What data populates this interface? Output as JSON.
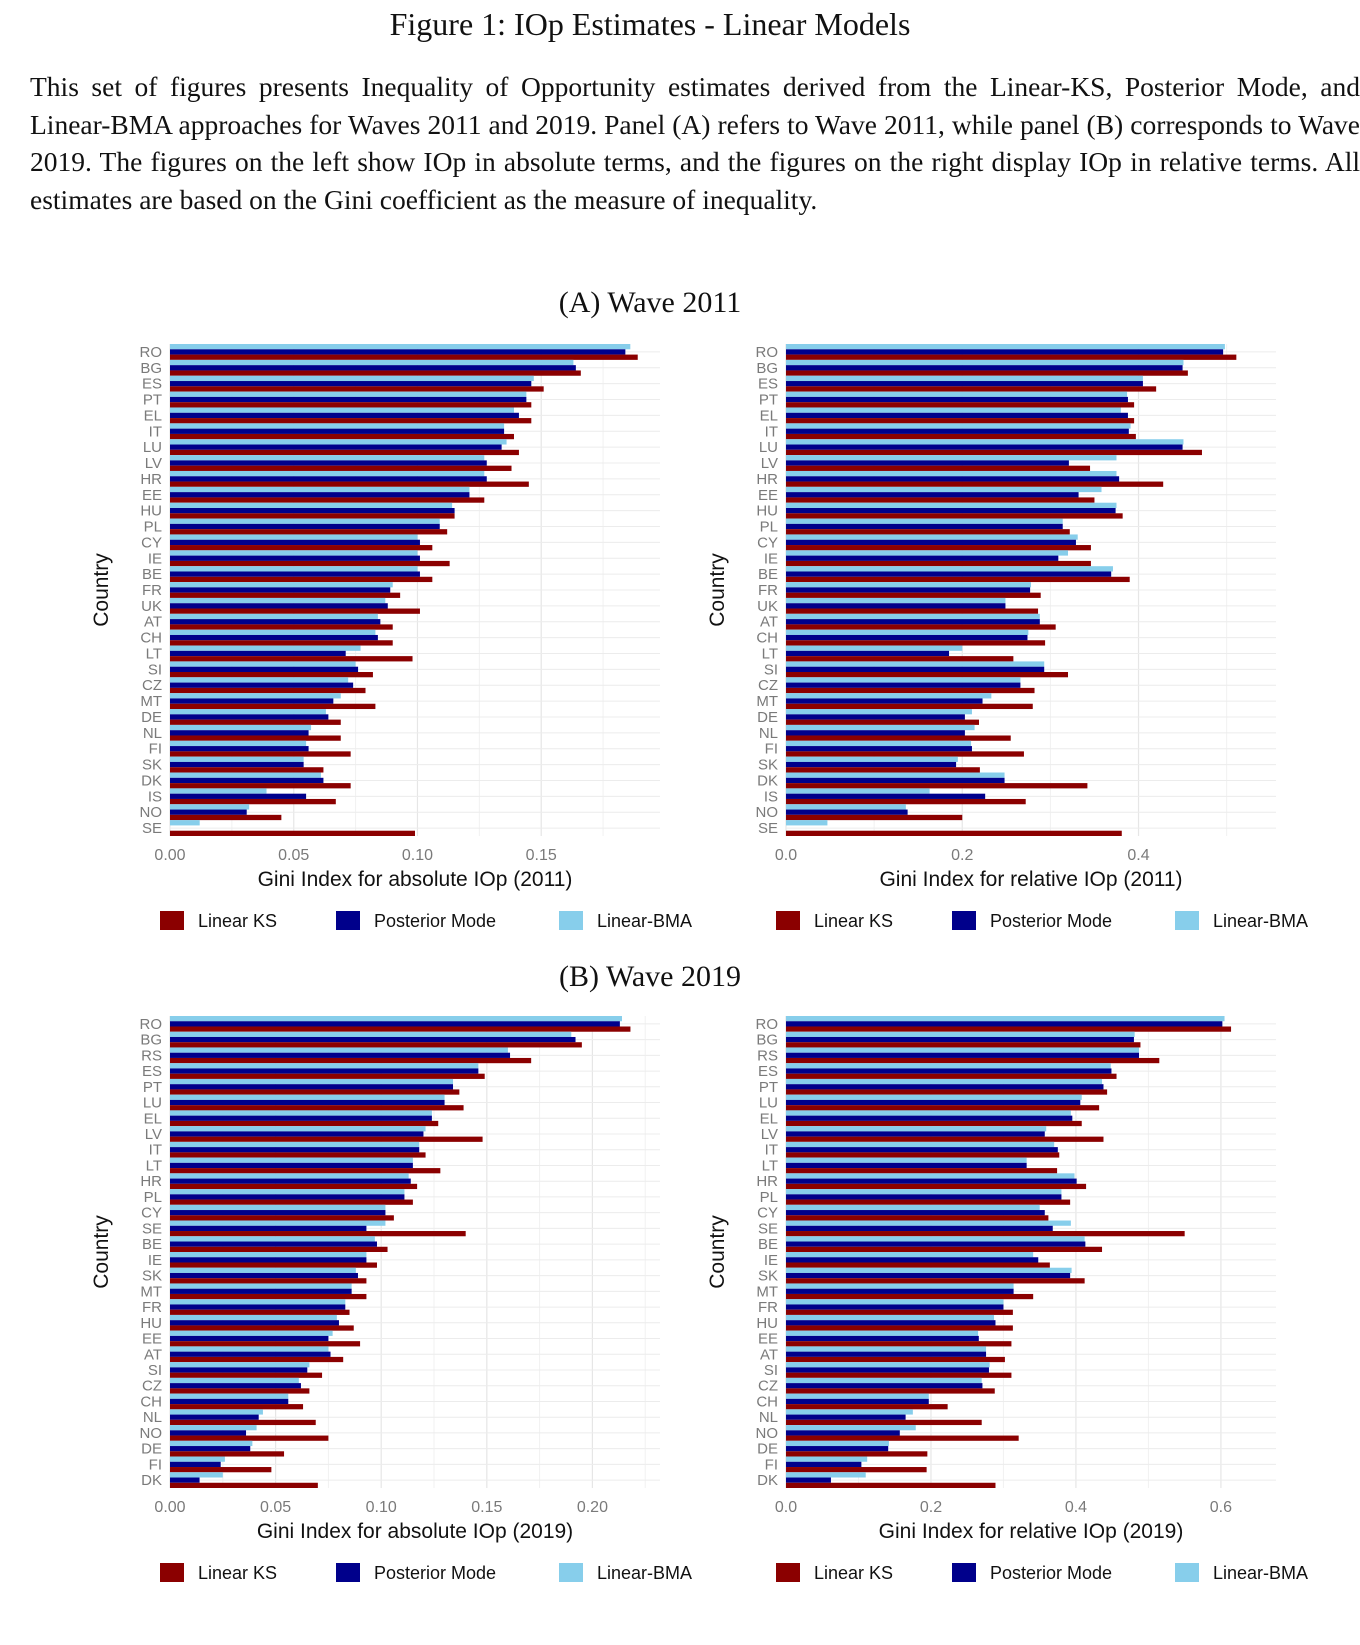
{
  "figure_title": "Figure 1: IOp Estimates - Linear Models",
  "caption": "This set of figures presents Inequality of Opportunity estimates derived from the Linear-KS, Posterior Mode, and Linear-BMA approaches for Waves 2011 and 2019. Panel (A) refers to Wave 2011, while panel (B) corresponds to Wave 2019. The figures on the left show IOp in absolute terms, and the figures on the right display IOp in relative terms. All estimates are based on the Gini coefficient as the measure of inequality.",
  "panel_a_title": "(A) Wave 2011",
  "panel_b_title": "(B) Wave 2019",
  "colors": {
    "Linear KS": "#8b0000",
    "Posterior Mode": "#00008b",
    "Linear-BMA": "#87ceeb"
  },
  "chart_data": [
    {
      "type": "bar",
      "orientation": "horizontal",
      "panel": "(A) Wave 2011",
      "ylabel": "Country",
      "xlabel": "Gini Index for absolute IOp (2011)",
      "xlim": [
        0,
        0.198
      ],
      "xticks": [
        0,
        0.05,
        0.1,
        0.15
      ],
      "xtick_labels": [
        "0.00",
        "0.05",
        "0.10",
        "0.15"
      ],
      "legend_position": "bottom",
      "categories": [
        "RO",
        "BG",
        "ES",
        "PT",
        "EL",
        "IT",
        "LU",
        "LV",
        "HR",
        "EE",
        "HU",
        "PL",
        "CY",
        "IE",
        "BE",
        "FR",
        "UK",
        "AT",
        "CH",
        "LT",
        "SI",
        "CZ",
        "MT",
        "DE",
        "NL",
        "FI",
        "SK",
        "DK",
        "IS",
        "NO",
        "SE"
      ],
      "series": [
        {
          "name": "Linear KS",
          "values": [
            0.189,
            0.166,
            0.151,
            0.146,
            0.146,
            0.139,
            0.141,
            0.138,
            0.145,
            0.127,
            0.115,
            0.112,
            0.106,
            0.113,
            0.106,
            0.093,
            0.101,
            0.09,
            0.09,
            0.098,
            0.082,
            0.079,
            0.083,
            0.069,
            0.069,
            0.073,
            0.062,
            0.073,
            0.067,
            0.045,
            0.099
          ]
        },
        {
          "name": "Posterior Mode",
          "values": [
            0.184,
            0.164,
            0.146,
            0.144,
            0.141,
            0.135,
            0.134,
            0.128,
            0.128,
            0.121,
            0.115,
            0.109,
            0.101,
            0.101,
            0.101,
            0.089,
            0.088,
            0.085,
            0.084,
            0.071,
            0.076,
            0.074,
            0.066,
            0.064,
            0.056,
            0.056,
            0.054,
            0.062,
            0.055,
            0.031,
            0.0
          ]
        },
        {
          "name": "Linear-BMA",
          "values": [
            0.186,
            0.163,
            0.147,
            0.144,
            0.139,
            0.135,
            0.136,
            0.127,
            0.127,
            0.121,
            0.114,
            0.109,
            0.1,
            0.1,
            0.1,
            0.09,
            0.087,
            0.084,
            0.083,
            0.077,
            0.075,
            0.072,
            0.069,
            0.063,
            0.057,
            0.055,
            0.054,
            0.061,
            0.039,
            0.032,
            0.012
          ]
        }
      ]
    },
    {
      "type": "bar",
      "orientation": "horizontal",
      "panel": "(A) Wave 2011",
      "ylabel": "Country",
      "xlabel": "Gini Index for relative IOp (2011)",
      "xlim": [
        0,
        0.556
      ],
      "xticks": [
        0,
        0.2,
        0.4
      ],
      "xtick_labels": [
        "0.0",
        "0.2",
        "0.4"
      ],
      "legend_position": "bottom",
      "categories": [
        "RO",
        "BG",
        "ES",
        "PT",
        "EL",
        "IT",
        "LU",
        "LV",
        "HR",
        "EE",
        "HU",
        "PL",
        "CY",
        "IE",
        "BE",
        "FR",
        "UK",
        "AT",
        "CH",
        "LT",
        "SI",
        "CZ",
        "MT",
        "DE",
        "NL",
        "FI",
        "SK",
        "DK",
        "IS",
        "NO",
        "SE"
      ],
      "series": [
        {
          "name": "Linear KS",
          "values": [
            0.511,
            0.456,
            0.42,
            0.395,
            0.395,
            0.397,
            0.472,
            0.345,
            0.428,
            0.35,
            0.382,
            0.322,
            0.346,
            0.346,
            0.39,
            0.289,
            0.286,
            0.306,
            0.294,
            0.258,
            0.32,
            0.282,
            0.28,
            0.219,
            0.255,
            0.27,
            0.22,
            0.342,
            0.272,
            0.2,
            0.381
          ]
        },
        {
          "name": "Posterior Mode",
          "values": [
            0.496,
            0.45,
            0.405,
            0.388,
            0.388,
            0.389,
            0.45,
            0.321,
            0.378,
            0.332,
            0.374,
            0.314,
            0.329,
            0.309,
            0.369,
            0.277,
            0.249,
            0.288,
            0.274,
            0.185,
            0.293,
            0.266,
            0.223,
            0.203,
            0.203,
            0.211,
            0.193,
            0.248,
            0.226,
            0.138,
            0.0
          ]
        },
        {
          "name": "Linear-BMA",
          "values": [
            0.498,
            0.451,
            0.405,
            0.387,
            0.38,
            0.391,
            0.451,
            0.375,
            0.375,
            0.358,
            0.375,
            0.314,
            0.331,
            0.32,
            0.371,
            0.278,
            0.249,
            0.288,
            0.275,
            0.2,
            0.293,
            0.266,
            0.233,
            0.211,
            0.214,
            0.21,
            0.195,
            0.248,
            0.163,
            0.136,
            0.047
          ]
        }
      ]
    },
    {
      "type": "bar",
      "orientation": "horizontal",
      "panel": "(B) Wave 2019",
      "ylabel": "Country",
      "xlabel": "Gini Index for absolute IOp (2019)",
      "xlim": [
        0,
        0.232
      ],
      "xticks": [
        0,
        0.05,
        0.1,
        0.15,
        0.2
      ],
      "xtick_labels": [
        "0.00",
        "0.05",
        "0.10",
        "0.15",
        "0.20"
      ],
      "legend_position": "bottom",
      "categories": [
        "RO",
        "BG",
        "RS",
        "ES",
        "PT",
        "LU",
        "EL",
        "LV",
        "IT",
        "LT",
        "HR",
        "PL",
        "CY",
        "SE",
        "BE",
        "IE",
        "SK",
        "MT",
        "FR",
        "HU",
        "EE",
        "AT",
        "SI",
        "CZ",
        "CH",
        "NL",
        "NO",
        "DE",
        "FI",
        "DK"
      ],
      "series": [
        {
          "name": "Linear KS",
          "values": [
            0.218,
            0.195,
            0.171,
            0.149,
            0.137,
            0.139,
            0.127,
            0.148,
            0.121,
            0.128,
            0.117,
            0.115,
            0.106,
            0.14,
            0.103,
            0.098,
            0.093,
            0.093,
            0.085,
            0.087,
            0.09,
            0.082,
            0.072,
            0.066,
            0.063,
            0.069,
            0.075,
            0.054,
            0.048,
            0.07
          ]
        },
        {
          "name": "Posterior Mode",
          "values": [
            0.213,
            0.192,
            0.161,
            0.146,
            0.134,
            0.13,
            0.124,
            0.12,
            0.118,
            0.115,
            0.114,
            0.111,
            0.102,
            0.093,
            0.098,
            0.093,
            0.089,
            0.086,
            0.083,
            0.08,
            0.075,
            0.076,
            0.065,
            0.062,
            0.056,
            0.042,
            0.036,
            0.038,
            0.024,
            0.014
          ]
        },
        {
          "name": "Linear-BMA",
          "values": [
            0.214,
            0.19,
            0.16,
            0.146,
            0.134,
            0.13,
            0.124,
            0.121,
            0.118,
            0.115,
            0.113,
            0.111,
            0.102,
            0.102,
            0.097,
            0.093,
            0.088,
            0.086,
            0.083,
            0.079,
            0.077,
            0.075,
            0.066,
            0.061,
            0.056,
            0.044,
            0.041,
            0.039,
            0.026,
            0.025
          ]
        }
      ]
    },
    {
      "type": "bar",
      "orientation": "horizontal",
      "panel": "(B) Wave 2019",
      "ylabel": "Country",
      "xlabel": "Gini Index for relative IOp (2019)",
      "xlim": [
        0,
        0.676
      ],
      "xticks": [
        0,
        0.2,
        0.4,
        0.6
      ],
      "xtick_labels": [
        "0.0",
        "0.2",
        "0.4",
        "0.6"
      ],
      "legend_position": "bottom",
      "categories": [
        "RO",
        "BG",
        "RS",
        "ES",
        "PT",
        "LU",
        "EL",
        "LV",
        "IT",
        "LT",
        "HR",
        "PL",
        "CY",
        "SE",
        "BE",
        "IE",
        "SK",
        "MT",
        "FR",
        "HU",
        "EE",
        "AT",
        "SI",
        "CZ",
        "CH",
        "NL",
        "NO",
        "DE",
        "FI",
        "DK"
      ],
      "series": [
        {
          "name": "Linear KS",
          "values": [
            0.614,
            0.489,
            0.515,
            0.456,
            0.443,
            0.432,
            0.408,
            0.438,
            0.377,
            0.374,
            0.414,
            0.392,
            0.362,
            0.55,
            0.436,
            0.364,
            0.412,
            0.341,
            0.313,
            0.313,
            0.311,
            0.302,
            0.311,
            0.288,
            0.223,
            0.27,
            0.321,
            0.195,
            0.194,
            0.289
          ]
        },
        {
          "name": "Posterior Mode",
          "values": [
            0.602,
            0.48,
            0.487,
            0.449,
            0.438,
            0.406,
            0.395,
            0.357,
            0.375,
            0.332,
            0.401,
            0.38,
            0.357,
            0.368,
            0.413,
            0.348,
            0.392,
            0.314,
            0.3,
            0.289,
            0.266,
            0.276,
            0.28,
            0.271,
            0.197,
            0.165,
            0.157,
            0.141,
            0.104,
            0.062
          ]
        },
        {
          "name": "Linear-BMA",
          "values": [
            0.605,
            0.481,
            0.487,
            0.448,
            0.436,
            0.408,
            0.393,
            0.359,
            0.37,
            0.332,
            0.398,
            0.38,
            0.35,
            0.393,
            0.412,
            0.341,
            0.394,
            0.314,
            0.3,
            0.287,
            0.265,
            0.276,
            0.281,
            0.27,
            0.197,
            0.175,
            0.179,
            0.142,
            0.112,
            0.11
          ]
        }
      ]
    }
  ]
}
